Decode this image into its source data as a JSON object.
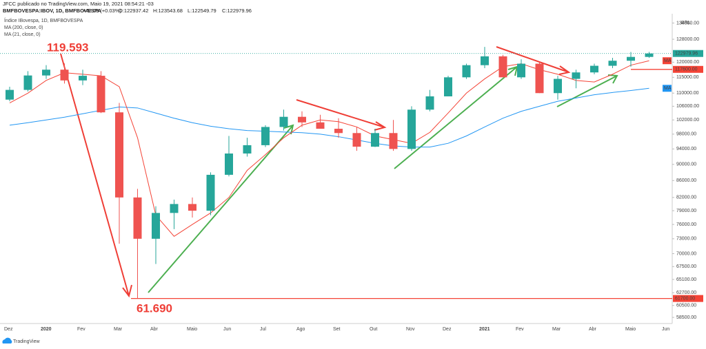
{
  "chart_data": {
    "type": "candlestick",
    "header": "JFCC publicado no TradingView.com, Maio 19, 2021 08:54:21 -03",
    "symbol": "BMFBOVESPA:IBOV, 1D, BMFBOVESPA",
    "ohlc": [
      "O:122937.42",
      "H:123543.68",
      "L:122549.79",
      "C:122979.96"
    ],
    "change": "+42.09 (+0.03%)",
    "legend_title": "Índice IBovespa, 1D, BMFBOVESPA",
    "currency": "BRL",
    "brand": "TradingView",
    "annotations": [
      "119.593",
      "61.690"
    ],
    "categories": [
      "Dez",
      null,
      "2020",
      null,
      "Fev",
      null,
      "Mar",
      null,
      "Abr",
      null,
      "Maio",
      null,
      "Jun",
      null,
      "Jul",
      null,
      "Ago",
      null,
      "Set",
      null,
      "Out",
      null,
      "Nov",
      null,
      "Dez",
      null,
      "2021",
      null,
      "Fev",
      null,
      "Mar",
      null,
      "Abr",
      null,
      "Maio",
      null,
      "Jun"
    ],
    "open": [
      108000,
      111000,
      115600,
      117500,
      114000,
      115500,
      104200,
      82000,
      73000,
      78500,
      80500,
      79000,
      87400,
      92800,
      95000,
      100000,
      102900,
      101300,
      99500,
      98300,
      94600,
      98300,
      94000,
      105000,
      109000,
      115000,
      119000,
      122000,
      115000,
      119500,
      110000,
      114500,
      116600,
      118800,
      120500,
      121800,
      null
    ],
    "high": [
      112000,
      117000,
      119000,
      119600,
      117500,
      117000,
      107000,
      84000,
      80000,
      81500,
      82000,
      88000,
      97500,
      97000,
      100500,
      105000,
      104500,
      103500,
      102500,
      100000,
      99500,
      102000,
      106000,
      111000,
      115500,
      119500,
      125300,
      122500,
      121000,
      120000,
      115500,
      117500,
      119500,
      121500,
      123500,
      123543,
      null
    ],
    "low": [
      107500,
      110500,
      114500,
      113000,
      112500,
      104000,
      72000,
      61690,
      68000,
      75000,
      77500,
      78000,
      87000,
      92000,
      94500,
      99000,
      100000,
      99500,
      97000,
      93500,
      94500,
      93500,
      93500,
      104500,
      109000,
      114500,
      118000,
      115500,
      114500,
      110000,
      108000,
      111500,
      116000,
      118000,
      118500,
      121500,
      null
    ],
    "close": [
      111000,
      115600,
      117500,
      114000,
      115500,
      104200,
      82000,
      73000,
      78500,
      80500,
      79000,
      87400,
      92800,
      95000,
      100000,
      102900,
      101300,
      99500,
      98300,
      94600,
      98300,
      94000,
      105000,
      109000,
      115000,
      119000,
      122000,
      115000,
      119500,
      110000,
      114500,
      116600,
      118800,
      120500,
      121800,
      122980,
      null
    ],
    "up_color": "#26a69a",
    "down_color": "#ef5350",
    "series": [
      {
        "name": "MA (200, close, 0)",
        "tag": "MA",
        "color": "#2196f3",
        "values": [
          100500,
          101200,
          102000,
          102800,
          103800,
          104800,
          105800,
          105500,
          104000,
          102500,
          101200,
          100200,
          99500,
          99000,
          98800,
          98600,
          98400,
          98000,
          97300,
          96400,
          95500,
          94800,
          94500,
          94500,
          95500,
          97500,
          100000,
          102500,
          104500,
          106000,
          107500,
          108500,
          109500,
          110200,
          110800,
          111500,
          null
        ]
      },
      {
        "name": "MA (21, close, 0)",
        "tag": "MA",
        "color": "#f44336",
        "values": [
          107000,
          110000,
          114000,
          116500,
          116000,
          115500,
          112000,
          97000,
          78000,
          73500,
          76000,
          78500,
          82000,
          88500,
          92500,
          97000,
          100500,
          102000,
          101500,
          100000,
          97500,
          96500,
          95500,
          98500,
          104000,
          110000,
          114500,
          118500,
          119500,
          117500,
          116000,
          114000,
          113500,
          116000,
          119000,
          120500,
          null
        ]
      }
    ],
    "price_labels": [
      {
        "value": 122979.96,
        "label": "122979.96",
        "color": "#26a69a"
      },
      {
        "value": 117600,
        "label": "117600.00",
        "color": "#f44336"
      },
      {
        "value": 61700,
        "label": "61700.00",
        "color": "#f44336"
      }
    ],
    "log_scale": true,
    "ylim": [
      57500,
      137000
    ],
    "yticks": [
      {
        "value": 58500,
        "label": "58500.00"
      },
      {
        "value": 60500,
        "label": "60500.00"
      },
      {
        "value": 62700,
        "label": "62700.00"
      },
      {
        "value": 65100,
        "label": "65100.00"
      },
      {
        "value": 67500,
        "label": "67500.00"
      },
      {
        "value": 70000,
        "label": "70000.00"
      },
      {
        "value": 73000,
        "label": "73000.00"
      },
      {
        "value": 76000,
        "label": "76000.00"
      },
      {
        "value": 79000,
        "label": "79000.00"
      },
      {
        "value": 82000,
        "label": "82000.00"
      },
      {
        "value": 86000,
        "label": "86000.00"
      },
      {
        "value": 90000,
        "label": "90000.00"
      },
      {
        "value": 94000,
        "label": "94000.00"
      },
      {
        "value": 98000,
        "label": "98000.00"
      },
      {
        "value": 102000,
        "label": "102000.00"
      },
      {
        "value": 106000,
        "label": "106000.00"
      },
      {
        "value": 110000,
        "label": "110000.00"
      },
      {
        "value": 115000,
        "label": "115000.00"
      },
      {
        "value": 120000,
        "label": "120000.00"
      },
      {
        "value": 128000,
        "label": "128000.00"
      },
      {
        "value": 134000,
        "label": "134000.00"
      }
    ]
  }
}
